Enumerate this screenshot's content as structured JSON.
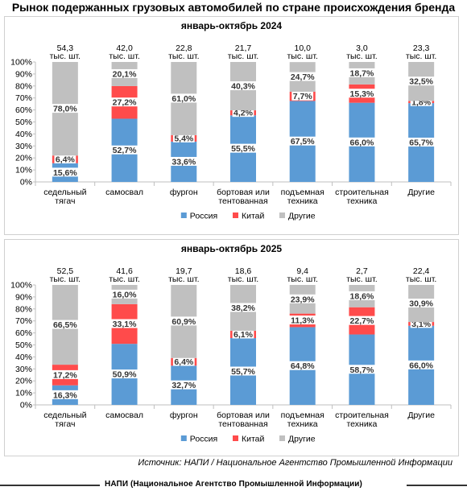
{
  "title": "Рынок подержанных грузовых автомобилей по стране происхождения бренда",
  "source": "Источник: НАПИ / Национальное Агентство Промышленной Информации",
  "footer": "НАПИ (Национальное Агентство Промышленной Информации)",
  "colors": {
    "russia": "#5b9bd5",
    "china": "#ff4b4b",
    "other": "#c0c0c0"
  },
  "chart_data": [
    {
      "type": "bar",
      "stacked": true,
      "title": "январь-октябрь 2024",
      "categories": [
        [
          "седельный",
          "тягач"
        ],
        [
          "самосвал"
        ],
        [
          "фургон"
        ],
        [
          "бортовая или",
          "тентованная"
        ],
        [
          "подъемная",
          "техника"
        ],
        [
          "строительная",
          "техника"
        ],
        [
          "Другие"
        ]
      ],
      "totals": [
        [
          "54,3",
          "тыс. шт."
        ],
        [
          "42,0",
          "тыс. шт."
        ],
        [
          "22,8",
          "тыс. шт."
        ],
        [
          "21,7",
          "тыс. шт."
        ],
        [
          "10,0",
          "тыс. шт."
        ],
        [
          "3,0",
          "тыс. шт."
        ],
        [
          "23,3",
          "тыс. шт."
        ]
      ],
      "ylim": [
        0,
        100
      ],
      "yticks": [
        "0%",
        "10%",
        "20%",
        "30%",
        "40%",
        "50%",
        "60%",
        "70%",
        "80%",
        "90%",
        "100%"
      ],
      "legend": "bottom",
      "series": [
        {
          "name": "Россия",
          "color": "#5b9bd5",
          "values": [
            15.6,
            52.7,
            33.6,
            55.5,
            67.5,
            66.0,
            65.7
          ],
          "labels": [
            "15,6%",
            "52,7%",
            "33,6%",
            "55,5%",
            "67,5%",
            "66,0%",
            "65,7%"
          ]
        },
        {
          "name": "Китай",
          "color": "#ff4b4b",
          "values": [
            6.4,
            27.2,
            5.4,
            4.2,
            7.7,
            15.3,
            1.8
          ],
          "labels": [
            "6,4%",
            "27,2%",
            "5,4%",
            "4,2%",
            "7,7%",
            "15,3%",
            "1,8%"
          ]
        },
        {
          "name": "Другие",
          "color": "#c0c0c0",
          "values": [
            78.0,
            20.1,
            61.0,
            40.3,
            24.7,
            18.7,
            32.5
          ],
          "labels": [
            "78,0%",
            "20,1%",
            "61,0%",
            "40,3%",
            "24,7%",
            "18,7%",
            "32,5%"
          ]
        }
      ]
    },
    {
      "type": "bar",
      "stacked": true,
      "title": "январь-октябрь 2025",
      "categories": [
        [
          "седельный",
          "тягач"
        ],
        [
          "самосвал"
        ],
        [
          "фургон"
        ],
        [
          "бортовая или",
          "тентованная"
        ],
        [
          "подъемная",
          "техника"
        ],
        [
          "строительная",
          "техника"
        ],
        [
          "Другие"
        ]
      ],
      "totals": [
        [
          "52,5",
          "тыс. шт."
        ],
        [
          "41,6",
          "тыс. шт."
        ],
        [
          "19,7",
          "тыс. шт."
        ],
        [
          "18,6",
          "тыс. шт."
        ],
        [
          "9,4",
          "тыс. шт."
        ],
        [
          "2,7",
          "тыс. шт."
        ],
        [
          "22,4",
          "тыс. шт."
        ]
      ],
      "ylim": [
        0,
        100
      ],
      "yticks": [
        "0%",
        "10%",
        "20%",
        "30%",
        "40%",
        "50%",
        "60%",
        "70%",
        "80%",
        "90%",
        "100%"
      ],
      "legend": "bottom",
      "series": [
        {
          "name": "Россия",
          "color": "#5b9bd5",
          "values": [
            16.3,
            50.9,
            32.7,
            55.7,
            64.8,
            58.7,
            66.0
          ],
          "labels": [
            "16,3%",
            "50,9%",
            "32,7%",
            "55,7%",
            "64,8%",
            "58,7%",
            "66,0%"
          ]
        },
        {
          "name": "Китай",
          "color": "#ff4b4b",
          "values": [
            17.2,
            33.1,
            6.4,
            6.1,
            11.3,
            22.7,
            3.1
          ],
          "labels": [
            "17,2%",
            "33,1%",
            "6,4%",
            "6,1%",
            "11,3%",
            "22,7%",
            "3,1%"
          ]
        },
        {
          "name": "Другие",
          "color": "#c0c0c0",
          "values": [
            66.5,
            16.0,
            60.9,
            38.2,
            23.9,
            18.6,
            30.9
          ],
          "labels": [
            "66,5%",
            "16,0%",
            "60,9%",
            "38,2%",
            "23,9%",
            "18,6%",
            "30,9%"
          ]
        }
      ]
    }
  ]
}
